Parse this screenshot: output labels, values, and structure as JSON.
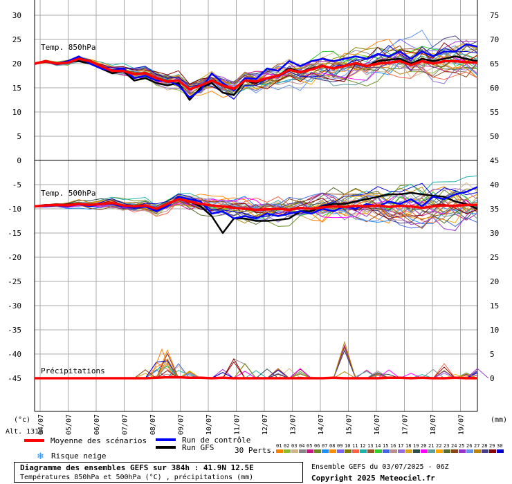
{
  "chart_data": {
    "type": "line",
    "x_tick_labels": [
      "04/07",
      "05/07",
      "06/07",
      "07/07",
      "08/07",
      "09/07",
      "10/07",
      "11/07",
      "12/07",
      "13/07",
      "14/07",
      "15/07",
      "16/07",
      "17/07",
      "18/07",
      "19/07"
    ],
    "left_ticks": [
      "30",
      "25",
      "20",
      "15",
      "10",
      "5",
      "0",
      "-5",
      "-10",
      "-15",
      "-20",
      "-25",
      "-30",
      "-35",
      "-40",
      "-45"
    ],
    "right_ticks_upper": [
      "75",
      "70",
      "65",
      "60",
      "55",
      "50",
      "45"
    ],
    "right_ticks_lower": [
      "40",
      "35",
      "30",
      "25",
      "20",
      "15",
      "10",
      "5",
      "0"
    ],
    "left_unit": "(°c)",
    "right_unit": "(mm)",
    "altitude_label": "Alt. 131m",
    "panels": [
      {
        "label": "Temp. 850hPa",
        "ylim": [
          0,
          30
        ],
        "mean": [
          20,
          20.5,
          20,
          20.2,
          21,
          20.5,
          19.5,
          18.5,
          18.5,
          17.8,
          18,
          17,
          16.3,
          16.5,
          14.7,
          15.5,
          16.5,
          15.5,
          14.8,
          16.5,
          16.3,
          17,
          17.5,
          18.7,
          18.2,
          18.8,
          19.5,
          19,
          19.5,
          20.1,
          19.5,
          20,
          20.2,
          20.5,
          19.7,
          20.5,
          20,
          20.5,
          20.5,
          20.3,
          20.2
        ],
        "control": [
          20,
          20.5,
          20,
          20.5,
          21.5,
          20,
          19,
          18.5,
          19,
          17,
          17.5,
          16.5,
          16.5,
          15.5,
          13,
          14.5,
          18,
          16,
          14.5,
          17,
          16.8,
          19,
          18.5,
          20.5,
          19.5,
          20.5,
          21,
          20.5,
          21,
          21.5,
          21,
          22,
          21.5,
          22.5,
          21,
          22.5,
          21.5,
          22.5,
          22.5,
          24,
          23.5
        ],
        "gfs": [
          20,
          20.5,
          20,
          20.5,
          20.5,
          20,
          19,
          18,
          18.5,
          16.5,
          17,
          16,
          15.5,
          16,
          12.5,
          15,
          16,
          14,
          13.5,
          16.5,
          16,
          17,
          17.5,
          19,
          18.3,
          19,
          19.5,
          19,
          19.5,
          20,
          19.5,
          20.5,
          20.8,
          21,
          20,
          21,
          20.5,
          21,
          21.5,
          21,
          20.5
        ]
      },
      {
        "label": "Temp. 500hPa",
        "ylim": [
          -45,
          0
        ],
        "mean": [
          -9.5,
          -9.3,
          -9.2,
          -9.3,
          -9,
          -9.2,
          -9,
          -8.8,
          -9.3,
          -9.5,
          -9.3,
          -10,
          -9,
          -8,
          -8.5,
          -9,
          -9.3,
          -9.5,
          -9.8,
          -10,
          -10.2,
          -10.1,
          -10,
          -10.2,
          -9.8,
          -10,
          -9.7,
          -9.5,
          -9.6,
          -9.4,
          -9.5,
          -9.3,
          -9.6,
          -9.4,
          -9.5,
          -9.8,
          -9.5,
          -9.3,
          -9.4,
          -9.2,
          -9.2
        ],
        "control": [
          -9.5,
          -9.5,
          -9.3,
          -9.5,
          -9,
          -9.5,
          -9,
          -9,
          -9.5,
          -9.8,
          -9.5,
          -10.5,
          -9.5,
          -7.5,
          -8,
          -8.5,
          -11,
          -10.5,
          -12,
          -11.5,
          -12,
          -11,
          -11.5,
          -11,
          -10.5,
          -11,
          -10,
          -10.5,
          -9.5,
          -10,
          -9,
          -9.5,
          -8.5,
          -9,
          -8,
          -9.5,
          -7.5,
          -8,
          -7,
          -6.5,
          -5.5
        ],
        "gfs": [
          -9.5,
          -9.3,
          -9.2,
          -9.3,
          -9,
          -9.2,
          -9,
          -8.8,
          -9.3,
          -9.8,
          -9.5,
          -10.2,
          -9,
          -8,
          -8.5,
          -9.5,
          -11.5,
          -15,
          -12,
          -12,
          -12.5,
          -12.5,
          -12.3,
          -12,
          -10.5,
          -10.5,
          -9.5,
          -9,
          -9,
          -8.5,
          -8,
          -7.5,
          -7,
          -7,
          -6.7,
          -7,
          -7.3,
          -7.5,
          -8.5,
          -9,
          -10
        ]
      },
      {
        "label": "Précipitations",
        "ylim": [
          0,
          45
        ],
        "mean": [
          0,
          0,
          0,
          0,
          0,
          0,
          0,
          0,
          0,
          0,
          0,
          0.1,
          0.2,
          0.2,
          0.1,
          0.1,
          0,
          0.1,
          0,
          0,
          0,
          0,
          0,
          0,
          0,
          0,
          0,
          0.1,
          0,
          0,
          0,
          0,
          0.1,
          0.1,
          0,
          0.1,
          0,
          0,
          0.1,
          0,
          0
        ],
        "spikes": [
          [
            11.5,
            6
          ],
          [
            12,
            4
          ],
          [
            13,
            3
          ],
          [
            14,
            1.5
          ],
          [
            18,
            4
          ],
          [
            19,
            3
          ],
          [
            22,
            2
          ],
          [
            24,
            2
          ],
          [
            28,
            7.5
          ],
          [
            31,
            1.5
          ],
          [
            37,
            3
          ],
          [
            39,
            1
          ],
          [
            40,
            2
          ]
        ]
      }
    ],
    "members_count": 30
  },
  "legend": {
    "mean": "Moyenne des scénarios",
    "control": "Run de contrôle",
    "gfs": "Run GFS",
    "snow": "Risque neige",
    "perts": "30 Perts.",
    "member_numbers": [
      "01",
      "02",
      "03",
      "04",
      "05",
      "06",
      "07",
      "08",
      "09",
      "10",
      "11",
      "12",
      "13",
      "14",
      "15",
      "16",
      "17",
      "18",
      "19",
      "20",
      "21",
      "22",
      "23",
      "24",
      "25",
      "26",
      "27",
      "28",
      "29",
      "30"
    ],
    "member_colors": [
      "#ff7f00",
      "#8fbc2f",
      "#d2b48c",
      "#888888",
      "#c71585",
      "#6b8e23",
      "#1e90ff",
      "#ff8c00",
      "#7b68ee",
      "#808000",
      "#ff6347",
      "#20b2aa",
      "#a0522d",
      "#32cd32",
      "#4169e1",
      "#bc8f8f",
      "#9370db",
      "#daa520",
      "#2f4f4f",
      "#ff00ff",
      "#5f9ea0",
      "#ffa500",
      "#556b2f",
      "#8b4513",
      "#9932cc",
      "#6495ed",
      "#b8860b",
      "#483d8b",
      "#8b0000",
      "#0000cd"
    ]
  },
  "footer": {
    "title": "Diagramme des ensembles GEFS sur 384h : 41.9N 12.5E",
    "subtitle": "Températures 850hPa et 500hPa (°C) , précipitations (mm)",
    "run_info": "Ensemble GEFS du 03/07/2025 - 06Z",
    "copyright": "Copyright 2025 Meteociel.fr"
  },
  "colors": {
    "mean": "#ff0000",
    "control": "#0000ff",
    "gfs": "#000000",
    "grid": "#aaaaaa",
    "frame": "#000000",
    "snow_icon": "#1e90ff"
  }
}
